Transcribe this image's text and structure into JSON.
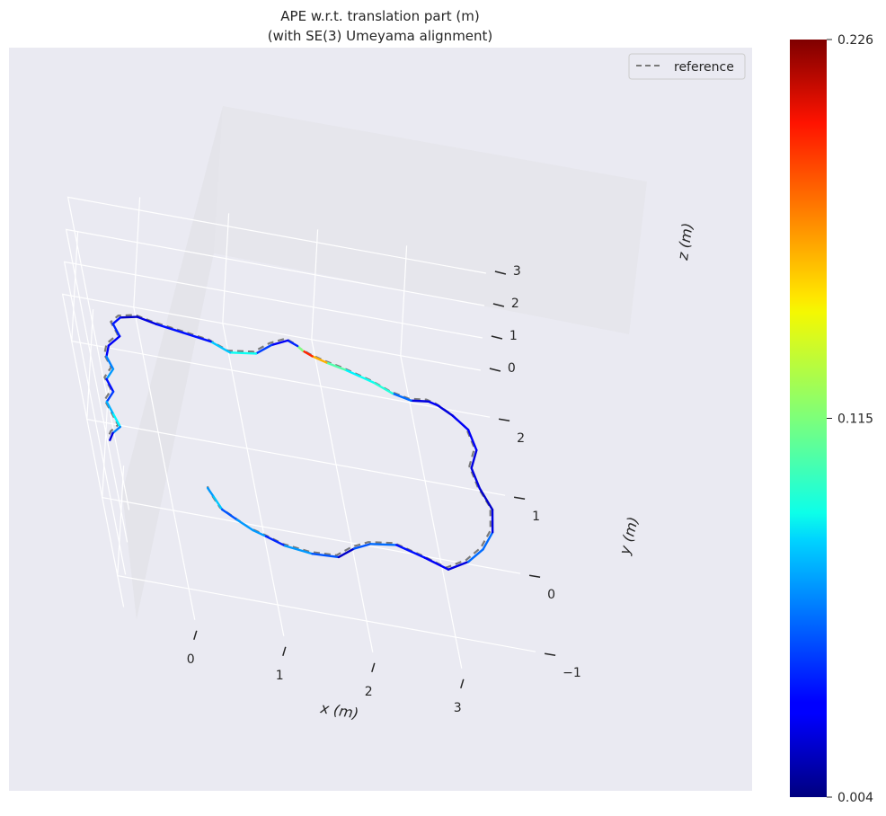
{
  "chart_data": {
    "type": "line",
    "title": "APE w.r.t. translation part (m)",
    "subtitle": "(with SE(3) Umeyama alignment)",
    "xlabel": "x (m)",
    "ylabel": "y (m)",
    "zlabel": "z (m)",
    "x_ticks": [
      "0",
      "1",
      "2",
      "3"
    ],
    "y_ticks": [
      "−1",
      "0",
      "1",
      "2"
    ],
    "z_ticks": [
      "0",
      "1",
      "2",
      "3"
    ],
    "xlim": [
      -0.8,
      3.9
    ],
    "ylim": [
      -1.4,
      2.6
    ],
    "zlim": [
      -0.3,
      3.4
    ],
    "grid": true,
    "legend": {
      "position": "top-right",
      "entries": [
        "reference"
      ]
    },
    "colorbar": {
      "min": 0.004,
      "max": 0.226,
      "ticks": [
        "0.004",
        "0.115",
        "0.226"
      ],
      "colormap": "jet"
    },
    "series": [
      {
        "name": "reference",
        "style": "dashed",
        "color": "#7a7a7a",
        "x": [
          0.45,
          0.48,
          0.55,
          0.7,
          0.85,
          1.0,
          1.2,
          1.5,
          1.8,
          2.0,
          2.2,
          2.5,
          2.8,
          3.05,
          3.3,
          3.5,
          3.65,
          3.7,
          3.6,
          3.55,
          3.65,
          3.6,
          3.45,
          3.3,
          3.2,
          3.0,
          2.8,
          2.6,
          2.45,
          2.3,
          2.1,
          1.95,
          1.85,
          1.8,
          1.7,
          1.5,
          1.3,
          1.0,
          0.8,
          0.5,
          0.2,
          0.0,
          -0.2,
          -0.3,
          -0.25,
          -0.4,
          -0.45,
          -0.4,
          -0.5,
          -0.45,
          -0.55,
          -0.5,
          -0.45,
          -0.55,
          -0.6
        ],
        "y": [
          0.4,
          0.3,
          0.15,
          0.05,
          -0.05,
          -0.1,
          -0.18,
          -0.22,
          -0.2,
          -0.05,
          0.05,
          0.1,
          0.0,
          -0.1,
          0.05,
          0.25,
          0.5,
          0.8,
          1.05,
          1.3,
          1.55,
          1.8,
          1.95,
          2.05,
          2.08,
          2.05,
          2.1,
          2.2,
          2.25,
          2.3,
          2.35,
          2.4,
          2.45,
          2.5,
          2.55,
          2.45,
          2.3,
          2.25,
          2.35,
          2.4,
          2.45,
          2.5,
          2.45,
          2.35,
          2.2,
          2.05,
          1.9,
          1.75,
          1.6,
          1.45,
          1.3,
          1.15,
          1.0,
          0.9,
          0.8
        ],
        "z": [
          0,
          0,
          0,
          0,
          0,
          0,
          0,
          0,
          0,
          0,
          0,
          0,
          0,
          0,
          0,
          0,
          0,
          0,
          0,
          0,
          0,
          0,
          0,
          0,
          0,
          0,
          0,
          0,
          0,
          0,
          0,
          0,
          0,
          0,
          0,
          0,
          0,
          0,
          0,
          0,
          0,
          0,
          0,
          0,
          0,
          0,
          0,
          0,
          0,
          0,
          0,
          0,
          0,
          0,
          0
        ]
      },
      {
        "name": "",
        "style": "colormapped",
        "x": [
          0.45,
          0.5,
          0.57,
          0.72,
          0.88,
          1.02,
          1.22,
          1.52,
          1.82,
          2.02,
          2.22,
          2.52,
          2.82,
          3.07,
          3.32,
          3.52,
          3.67,
          3.72,
          3.62,
          3.57,
          3.67,
          3.62,
          3.47,
          3.32,
          3.22,
          3.02,
          2.82,
          2.62,
          2.47,
          2.32,
          2.12,
          1.97,
          1.87,
          1.82,
          1.72,
          1.52,
          1.32,
          1.02,
          0.82,
          0.52,
          0.22,
          0.02,
          -0.18,
          -0.28,
          -0.23,
          -0.38,
          -0.43,
          -0.38,
          -0.48,
          -0.43,
          -0.53,
          -0.48,
          -0.43,
          -0.53,
          -0.58
        ],
        "y": [
          0.38,
          0.28,
          0.13,
          0.03,
          -0.07,
          -0.12,
          -0.2,
          -0.24,
          -0.22,
          -0.07,
          0.03,
          0.08,
          -0.02,
          -0.12,
          0.03,
          0.23,
          0.48,
          0.78,
          1.03,
          1.28,
          1.53,
          1.78,
          1.93,
          2.03,
          2.06,
          2.03,
          2.08,
          2.18,
          2.23,
          2.28,
          2.33,
          2.38,
          2.43,
          2.48,
          2.53,
          2.43,
          2.28,
          2.23,
          2.33,
          2.38,
          2.43,
          2.48,
          2.43,
          2.33,
          2.18,
          2.03,
          1.88,
          1.73,
          1.58,
          1.43,
          1.28,
          1.13,
          0.98,
          0.88,
          0.78
        ],
        "z": [
          0,
          0,
          0,
          0,
          0,
          0,
          0,
          0,
          0,
          0,
          0,
          0,
          0,
          0,
          0,
          0,
          0,
          0,
          0,
          0,
          0,
          0,
          0,
          0,
          0,
          0,
          0,
          0,
          0,
          0,
          0,
          0,
          0,
          0,
          0,
          0,
          0,
          0,
          0,
          0,
          0,
          0,
          0,
          0,
          0,
          0,
          0,
          0,
          0,
          0,
          0,
          0,
          0,
          0,
          0
        ],
        "error": [
          0.05,
          0.08,
          0.07,
          0.03,
          0.1,
          0.03,
          0.05,
          0.08,
          0.02,
          0.02,
          0.08,
          0.03,
          0.04,
          0.02,
          0.03,
          0.08,
          0.03,
          0.02,
          0.02,
          0.03,
          0.02,
          0.04,
          0.02,
          0.03,
          0.03,
          0.02,
          0.09,
          0.1,
          0.08,
          0.09,
          0.12,
          0.2,
          0.18,
          0.05,
          0.03,
          0.03,
          0.06,
          0.12,
          0.03,
          0.04,
          0.03,
          0.02,
          0.02,
          0.05,
          0.03,
          0.03,
          0.03,
          0.09,
          0.04,
          0.03,
          0.06,
          0.08,
          0.09,
          0.03,
          0.02
        ]
      }
    ]
  }
}
